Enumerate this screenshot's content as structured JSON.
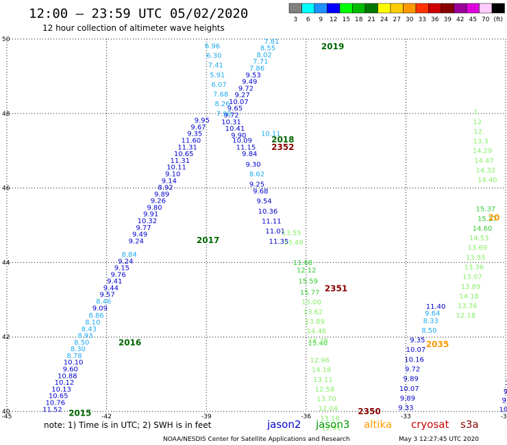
{
  "header": {
    "title": "12:00 – 23:59 UTC 05/02/2020",
    "subtitle": "12 hour collection of altimeter wave heights"
  },
  "legend": {
    "labels": [
      "3",
      "6",
      "9",
      "12",
      "15",
      "18",
      "21",
      "24",
      "27",
      "30",
      "33",
      "36",
      "39",
      "42",
      "45",
      "70",
      "(ft)"
    ],
    "colors": [
      "#808080",
      "#00ffff",
      "#1e90ff",
      "#0000ff",
      "#00ff00",
      "#00bb00",
      "#007700",
      "#ffff00",
      "#ffcc00",
      "#ff9900",
      "#ff3300",
      "#cc0000",
      "#880000",
      "#990099",
      "#dd00dd",
      "#ffccff",
      "#000000"
    ]
  },
  "footer": {
    "note": "note: 1) Time is in UTC; 2) SWH is in feet",
    "satellites": [
      {
        "name": "jason2",
        "color": "#0000cc"
      },
      {
        "name": "jason3",
        "color": "#009900"
      },
      {
        "name": "altika",
        "color": "#ff9900"
      },
      {
        "name": "cryosat",
        "color": "#cc0000"
      },
      {
        "name": "s3a",
        "color": "#880000"
      }
    ],
    "credit": "NOAA/NESDIS Center for Satellite Applications and Research",
    "timestamp": "May  3 12:27:45 UTC 2020"
  },
  "chart_data": {
    "type": "scatter",
    "xlim": [
      -45,
      -30
    ],
    "ylim": [
      40,
      50
    ],
    "x_ticks": [
      "-45",
      "-42",
      "-39",
      "-36",
      "-33",
      "-30"
    ],
    "y_ticks": [
      "40",
      "42",
      "44",
      "46",
      "48",
      "50"
    ],
    "grid": true,
    "time_labels": [
      {
        "x": -42.8,
        "y": 39.95,
        "t": "2015",
        "color": "#006600"
      },
      {
        "x": -41.3,
        "y": 41.85,
        "t": "2016",
        "color": "#006600"
      },
      {
        "x": -38.95,
        "y": 44.6,
        "t": "2017",
        "color": "#006600"
      },
      {
        "x": -36.7,
        "y": 47.3,
        "t": "2018",
        "color": "#006600"
      },
      {
        "x": -35.2,
        "y": 49.8,
        "t": "2019",
        "color": "#006600"
      },
      {
        "x": -36.7,
        "y": 47.1,
        "t": "2352",
        "color": "#880000"
      },
      {
        "x": -35.1,
        "y": 43.3,
        "t": "2351",
        "color": "#880000"
      },
      {
        "x": -34.1,
        "y": 40.0,
        "t": "2350",
        "color": "#880000"
      },
      {
        "x": -32.05,
        "y": 41.8,
        "t": "2035",
        "color": "#ff9900"
      },
      {
        "x": -30.35,
        "y": 45.2,
        "t": "20",
        "color": "#ff9900"
      }
    ],
    "series": [
      {
        "color": "#0000cc",
        "points": [
          {
            "x": -43.63,
            "y": 40.05,
            "v": "11.52"
          },
          {
            "x": -43.54,
            "y": 40.23,
            "v": "10.76"
          },
          {
            "x": -43.45,
            "y": 40.41,
            "v": "10.65"
          },
          {
            "x": -43.36,
            "y": 40.59,
            "v": "10.13"
          },
          {
            "x": -43.27,
            "y": 40.77,
            "v": "10.12"
          },
          {
            "x": -43.18,
            "y": 40.95,
            "v": "10.88"
          },
          {
            "x": -43.09,
            "y": 41.13,
            "v": "9.60"
          },
          {
            "x": -43.0,
            "y": 41.31,
            "v": "10.10"
          },
          {
            "x": -42.2,
            "y": 42.77,
            "v": "9.09"
          },
          {
            "x": -41.98,
            "y": 43.13,
            "v": "9.57"
          },
          {
            "x": -41.87,
            "y": 43.31,
            "v": "9.44"
          },
          {
            "x": -41.76,
            "y": 43.49,
            "v": "9.41"
          },
          {
            "x": -41.65,
            "y": 43.67,
            "v": "9.76"
          },
          {
            "x": -41.54,
            "y": 43.85,
            "v": "9.15"
          },
          {
            "x": -41.43,
            "y": 44.03,
            "v": "9.24"
          },
          {
            "x": -41.11,
            "y": 44.57,
            "v": "9.24"
          },
          {
            "x": -41.0,
            "y": 44.75,
            "v": "9.49"
          },
          {
            "x": -40.89,
            "y": 44.93,
            "v": "9.77"
          },
          {
            "x": -40.78,
            "y": 45.11,
            "v": "10.32"
          },
          {
            "x": -40.67,
            "y": 45.29,
            "v": "9.91"
          },
          {
            "x": -40.56,
            "y": 45.47,
            "v": "9.80"
          },
          {
            "x": -40.45,
            "y": 45.65,
            "v": "9.26"
          },
          {
            "x": -40.34,
            "y": 45.83,
            "v": "9.89"
          },
          {
            "x": -40.23,
            "y": 46.01,
            "v": "8.92"
          },
          {
            "x": -40.12,
            "y": 46.19,
            "v": "9.14"
          },
          {
            "x": -40.01,
            "y": 46.37,
            "v": "9.10"
          },
          {
            "x": -39.9,
            "y": 46.55,
            "v": "10.11"
          },
          {
            "x": -39.79,
            "y": 46.73,
            "v": "11.31"
          },
          {
            "x": -39.68,
            "y": 46.91,
            "v": "10.65"
          },
          {
            "x": -39.57,
            "y": 47.09,
            "v": "11.31"
          },
          {
            "x": -39.46,
            "y": 47.27,
            "v": "11.60"
          },
          {
            "x": -39.35,
            "y": 47.45,
            "v": "9.35"
          },
          {
            "x": -39.24,
            "y": 47.63,
            "v": "9.67"
          },
          {
            "x": -39.13,
            "y": 47.81,
            "v": "9.95"
          },
          {
            "x": -38.25,
            "y": 47.77,
            "v": "10.31"
          },
          {
            "x": -38.14,
            "y": 47.59,
            "v": "10.41"
          },
          {
            "x": -38.03,
            "y": 47.41,
            "v": "9.90"
          },
          {
            "x": -37.92,
            "y": 47.27,
            "v": "10.09"
          },
          {
            "x": -37.81,
            "y": 47.09,
            "v": "11.15"
          },
          {
            "x": -37.7,
            "y": 46.91,
            "v": "9.84"
          },
          {
            "x": -37.59,
            "y": 46.63,
            "v": "9.30"
          },
          {
            "x": -37.48,
            "y": 46.09,
            "v": "9.25"
          },
          {
            "x": -37.37,
            "y": 45.91,
            "v": "9.68"
          },
          {
            "x": -37.26,
            "y": 45.64,
            "v": "9.54"
          },
          {
            "x": -37.15,
            "y": 45.37,
            "v": "10.36"
          },
          {
            "x": -37.04,
            "y": 45.1,
            "v": "11.11"
          },
          {
            "x": -36.93,
            "y": 44.83,
            "v": "11.01"
          },
          {
            "x": -36.82,
            "y": 44.56,
            "v": "11.35"
          },
          {
            "x": -38.25,
            "y": 47.95,
            "v": "9.72"
          },
          {
            "x": -38.14,
            "y": 48.13,
            "v": "9.65"
          },
          {
            "x": -38.03,
            "y": 48.31,
            "v": "10.07"
          },
          {
            "x": -37.92,
            "y": 48.49,
            "v": "9.27"
          },
          {
            "x": -37.81,
            "y": 48.67,
            "v": "9.72"
          },
          {
            "x": -37.7,
            "y": 48.85,
            "v": "9.49"
          },
          {
            "x": -37.59,
            "y": 49.03,
            "v": "9.53"
          },
          {
            "x": -33.0,
            "y": 40.09,
            "v": "9.33"
          },
          {
            "x": -32.95,
            "y": 40.35,
            "v": "9.89"
          },
          {
            "x": -32.9,
            "y": 40.61,
            "v": "10.07"
          },
          {
            "x": -32.85,
            "y": 40.87,
            "v": "9.89"
          },
          {
            "x": -32.8,
            "y": 41.13,
            "v": "9.72"
          },
          {
            "x": -32.75,
            "y": 41.39,
            "v": "10.16"
          },
          {
            "x": -32.7,
            "y": 41.65,
            "v": "10.07"
          },
          {
            "x": -32.65,
            "y": 41.91,
            "v": "9.35"
          },
          {
            "x": -32.1,
            "y": 42.81,
            "v": "11.40"
          },
          {
            "x": -29.9,
            "y": 40.05,
            "v": "10.43"
          },
          {
            "x": -29.95,
            "y": 40.29,
            "v": "9.3"
          },
          {
            "x": -29.9,
            "y": 40.53,
            "v": "9.6"
          },
          {
            "x": -29.85,
            "y": 40.77,
            "v": "10."
          },
          {
            "x": -29.9,
            "y": 41.01,
            "v": "9"
          }
        ]
      },
      {
        "color": "#1eaaee",
        "points": [
          {
            "x": -42.97,
            "y": 41.49,
            "v": "8.78"
          },
          {
            "x": -42.86,
            "y": 41.67,
            "v": "8.30"
          },
          {
            "x": -42.75,
            "y": 41.85,
            "v": "8.50"
          },
          {
            "x": -42.64,
            "y": 42.03,
            "v": "8.93"
          },
          {
            "x": -42.53,
            "y": 42.21,
            "v": "8.43"
          },
          {
            "x": -42.42,
            "y": 42.39,
            "v": "8.10"
          },
          {
            "x": -42.31,
            "y": 42.57,
            "v": "8.86"
          },
          {
            "x": -42.09,
            "y": 42.95,
            "v": "8.46"
          },
          {
            "x": -41.32,
            "y": 44.21,
            "v": "8.84"
          },
          {
            "x": -38.82,
            "y": 49.81,
            "v": "6.96"
          },
          {
            "x": -38.77,
            "y": 49.55,
            "v": "6.30"
          },
          {
            "x": -38.72,
            "y": 49.29,
            "v": "7.41"
          },
          {
            "x": -38.67,
            "y": 49.03,
            "v": "5.91"
          },
          {
            "x": -38.62,
            "y": 48.77,
            "v": "6.07"
          },
          {
            "x": -38.57,
            "y": 48.51,
            "v": "7.68"
          },
          {
            "x": -38.52,
            "y": 48.25,
            "v": "8.26"
          },
          {
            "x": -38.47,
            "y": 47.99,
            "v": "7.90"
          },
          {
            "x": -37.48,
            "y": 46.37,
            "v": "8.62"
          },
          {
            "x": -37.06,
            "y": 47.45,
            "v": "10.11"
          },
          {
            "x": -37.48,
            "y": 49.21,
            "v": "7.86"
          },
          {
            "x": -37.37,
            "y": 49.39,
            "v": "7.71"
          },
          {
            "x": -37.26,
            "y": 49.57,
            "v": "8.02"
          },
          {
            "x": -37.15,
            "y": 49.75,
            "v": "8.55"
          },
          {
            "x": -37.04,
            "y": 49.93,
            "v": "7.81"
          },
          {
            "x": -32.3,
            "y": 42.17,
            "v": "8.50"
          },
          {
            "x": -32.25,
            "y": 42.43,
            "v": "8.33"
          },
          {
            "x": -32.2,
            "y": 42.63,
            "v": "9.64"
          }
        ]
      },
      {
        "color": "#33cc33",
        "points": [
          {
            "x": -36.1,
            "y": 43.99,
            "v": "11.68"
          },
          {
            "x": -35.99,
            "y": 43.79,
            "v": "12.12"
          },
          {
            "x": -35.94,
            "y": 43.49,
            "v": "15.59"
          },
          {
            "x": -35.89,
            "y": 43.19,
            "v": "15.77"
          },
          {
            "x": -35.65,
            "y": 41.83,
            "v": "15.40"
          },
          {
            "x": -30.6,
            "y": 45.43,
            "v": "15.37"
          },
          {
            "x": -30.55,
            "y": 45.17,
            "v": "15.37"
          },
          {
            "x": -30.7,
            "y": 44.91,
            "v": "14.60"
          }
        ]
      },
      {
        "color": "#88ee66",
        "points": [
          {
            "x": -36.44,
            "y": 44.79,
            "v": "13.55"
          },
          {
            "x": -36.38,
            "y": 44.53,
            "v": "13.49"
          },
          {
            "x": -35.84,
            "y": 42.93,
            "v": "15.00"
          },
          {
            "x": -35.79,
            "y": 42.67,
            "v": "13.62"
          },
          {
            "x": -35.74,
            "y": 42.41,
            "v": "13.89"
          },
          {
            "x": -35.69,
            "y": 42.15,
            "v": "14.46"
          },
          {
            "x": -35.64,
            "y": 41.89,
            "v": "14.28"
          },
          {
            "x": -35.59,
            "y": 41.37,
            "v": "12.96"
          },
          {
            "x": -35.54,
            "y": 41.11,
            "v": "14.18"
          },
          {
            "x": -35.49,
            "y": 40.85,
            "v": "13.11"
          },
          {
            "x": -35.44,
            "y": 40.59,
            "v": "12.58"
          },
          {
            "x": -35.39,
            "y": 40.33,
            "v": "13.70"
          },
          {
            "x": -35.34,
            "y": 40.07,
            "v": "12.04"
          },
          {
            "x": -35.29,
            "y": 39.81,
            "v": "13.18"
          },
          {
            "x": -35.24,
            "y": 39.55,
            "v": "12.91"
          },
          {
            "x": -30.9,
            "y": 48.03,
            "v": "1"
          },
          {
            "x": -30.85,
            "y": 47.77,
            "v": "12"
          },
          {
            "x": -30.8,
            "y": 47.51,
            "v": "12."
          },
          {
            "x": -30.75,
            "y": 47.25,
            "v": "13.3"
          },
          {
            "x": -30.7,
            "y": 46.99,
            "v": "14.29"
          },
          {
            "x": -30.65,
            "y": 46.73,
            "v": "14.47"
          },
          {
            "x": -30.6,
            "y": 46.47,
            "v": "14.32"
          },
          {
            "x": -30.55,
            "y": 46.21,
            "v": "14.40"
          },
          {
            "x": -30.8,
            "y": 44.65,
            "v": "14.53"
          },
          {
            "x": -30.85,
            "y": 44.39,
            "v": "13.69"
          },
          {
            "x": -30.9,
            "y": 44.13,
            "v": "13.55"
          },
          {
            "x": -30.95,
            "y": 43.87,
            "v": "13.36"
          },
          {
            "x": -31.0,
            "y": 43.61,
            "v": "13.07"
          },
          {
            "x": -31.05,
            "y": 43.35,
            "v": "13.89"
          },
          {
            "x": -31.1,
            "y": 43.09,
            "v": "14.18"
          },
          {
            "x": -31.15,
            "y": 42.83,
            "v": "13.36"
          },
          {
            "x": -31.2,
            "y": 42.57,
            "v": "12.18"
          }
        ]
      }
    ]
  }
}
